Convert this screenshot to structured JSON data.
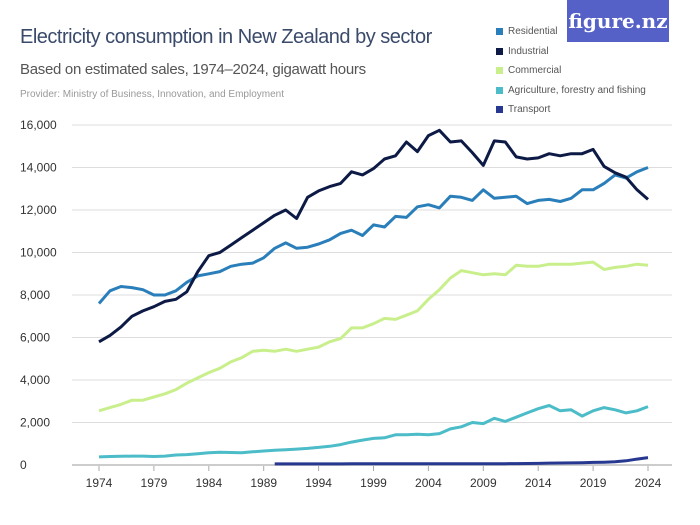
{
  "header": {
    "title": "Electricity consumption in New Zealand by sector",
    "subtitle": "Based on estimated sales, 1974–2024, gigawatt hours",
    "provider": "Provider: Ministry of Business, Innovation, and Employment",
    "logo": "figure.nz"
  },
  "chart_data": {
    "type": "line",
    "title": "Electricity consumption in New Zealand by sector",
    "subtitle": "Based on estimated sales, 1974–2024, gigawatt hours",
    "ylim": [
      0,
      16000
    ],
    "yticks": [
      0,
      2000,
      4000,
      6000,
      8000,
      10000,
      12000,
      14000,
      16000
    ],
    "ytick_labels": [
      "0",
      "2,000",
      "4,000",
      "6,000",
      "8,000",
      "10,000",
      "12,000",
      "14,000",
      "16,000"
    ],
    "xticks": [
      1974,
      1979,
      1984,
      1989,
      1994,
      1999,
      2004,
      2009,
      2014,
      2019,
      2024
    ],
    "xtick_labels": [
      "1974",
      "1979",
      "1984",
      "1989",
      "1994",
      "1999",
      "2004",
      "2009",
      "2014",
      "2019",
      "2024"
    ],
    "grid": true,
    "legend_placement": "top-right",
    "x_start": 1974,
    "series": [
      {
        "name": "Residential",
        "color": "#2a7fba",
        "start": 1974,
        "values": [
          7600,
          8200,
          8400,
          8350,
          8250,
          8000,
          8000,
          8200,
          8600,
          8900,
          9000,
          9100,
          9350,
          9450,
          9500,
          9750,
          10200,
          10450,
          10200,
          10250,
          10400,
          10600,
          10900,
          11050,
          10800,
          11300,
          11200,
          11700,
          11650,
          12150,
          12250,
          12100,
          12650,
          12600,
          12450,
          12950,
          12550,
          12600,
          12650,
          12300,
          12450,
          12500,
          12400,
          12550,
          12950,
          12950,
          13250,
          13650,
          13500,
          13800,
          14000
        ]
      },
      {
        "name": "Industrial",
        "color": "#0c1a45",
        "start": 1974,
        "values": [
          5800,
          6100,
          6500,
          7000,
          7250,
          7450,
          7700,
          7800,
          8150,
          9100,
          9850,
          10000,
          10350,
          10700,
          11050,
          11400,
          11750,
          12000,
          11600,
          12600,
          12900,
          13100,
          13250,
          13800,
          13650,
          13950,
          14400,
          14550,
          15200,
          14750,
          15500,
          15750,
          15200,
          15250,
          14700,
          14100,
          15250,
          15200,
          14500,
          14400,
          14450,
          14650,
          14550,
          14650,
          14650,
          14850,
          14050,
          13750,
          13550,
          12950,
          12500
        ]
      },
      {
        "name": "Commercial",
        "color": "#c9ef8c",
        "start": 1974,
        "values": [
          2550,
          2700,
          2850,
          3050,
          3050,
          3200,
          3350,
          3550,
          3850,
          4100,
          4350,
          4550,
          4850,
          5050,
          5350,
          5400,
          5350,
          5450,
          5350,
          5450,
          5550,
          5800,
          5950,
          6450,
          6450,
          6650,
          6900,
          6850,
          7050,
          7250,
          7800,
          8250,
          8800,
          9150,
          9050,
          8950,
          9000,
          8950,
          9400,
          9350,
          9350,
          9450,
          9450,
          9450,
          9500,
          9550,
          9200,
          9300,
          9350,
          9450,
          9400
        ]
      },
      {
        "name": "Agriculture, forestry and fishing",
        "color": "#4bbcc8",
        "start": 1974,
        "values": [
          380,
          400,
          410,
          420,
          420,
          400,
          420,
          470,
          490,
          530,
          580,
          600,
          590,
          580,
          620,
          660,
          690,
          720,
          750,
          780,
          830,
          880,
          960,
          1080,
          1170,
          1250,
          1280,
          1420,
          1420,
          1450,
          1420,
          1480,
          1700,
          1800,
          2000,
          1950,
          2200,
          2050,
          2250,
          2450,
          2650,
          2800,
          2550,
          2600,
          2300,
          2550,
          2700,
          2600,
          2450,
          2550,
          2750
        ]
      },
      {
        "name": "Transport",
        "color": "#26388f",
        "start": 1990,
        "values": [
          50,
          50,
          50,
          50,
          50,
          50,
          50,
          55,
          55,
          55,
          55,
          55,
          55,
          55,
          55,
          55,
          55,
          55,
          55,
          55,
          60,
          60,
          65,
          70,
          75,
          90,
          95,
          100,
          110,
          120,
          130,
          150,
          200,
          280,
          350
        ]
      }
    ]
  }
}
